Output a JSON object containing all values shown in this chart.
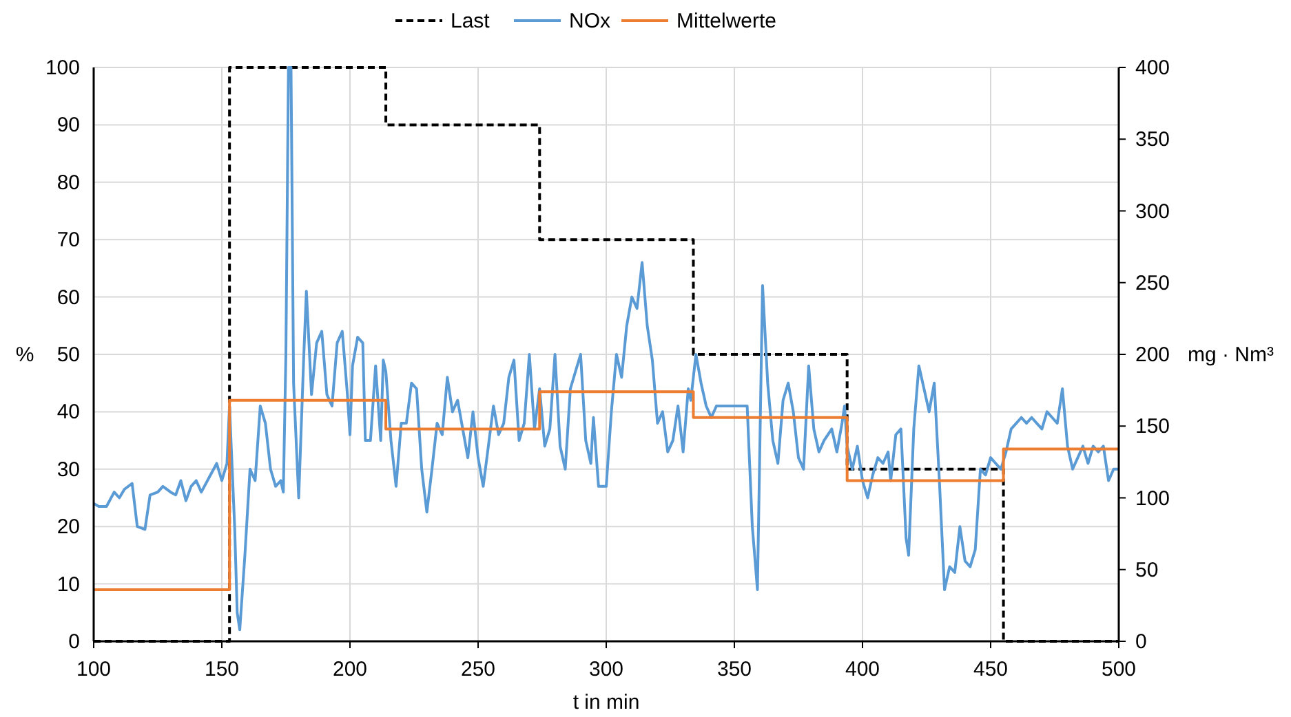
{
  "chart_data": {
    "type": "line",
    "xlabel": "t in min",
    "ylabel": "%",
    "y2label": "mg · Nm³",
    "xlim": [
      100,
      500
    ],
    "xticks": [
      100,
      150,
      200,
      250,
      300,
      350,
      400,
      450,
      500
    ],
    "ylim": [
      0,
      100
    ],
    "yticks": [
      0,
      10,
      20,
      30,
      40,
      50,
      60,
      70,
      80,
      90,
      100
    ],
    "y2lim": [
      0,
      400
    ],
    "y2ticks": [
      0,
      50,
      100,
      150,
      200,
      250,
      300,
      350,
      400
    ],
    "grid": true,
    "legend": "top",
    "series": [
      {
        "name": "Last",
        "type": "step",
        "color": "#000000",
        "line_style": "dashed",
        "x": [
          100,
          153,
          214,
          274,
          334,
          394,
          455,
          500
        ],
        "values": [
          0,
          100,
          90,
          70,
          50,
          30,
          0,
          0
        ]
      },
      {
        "name": "NOx",
        "type": "line",
        "axis": "y2",
        "color": "#5b9bd5",
        "x": [
          100,
          102,
          105,
          108,
          110,
          112,
          115,
          117,
          120,
          122,
          125,
          127,
          130,
          132,
          134,
          136,
          138,
          140,
          142,
          145,
          148,
          150,
          152,
          153,
          155,
          156,
          157,
          159,
          161,
          163,
          165,
          167,
          169,
          171,
          173,
          174,
          175,
          176,
          177,
          178,
          180,
          182,
          183,
          185,
          187,
          189,
          191,
          193,
          195,
          197,
          199,
          200,
          201,
          203,
          205,
          206,
          208,
          210,
          212,
          213,
          214,
          216,
          218,
          220,
          222,
          224,
          226,
          228,
          230,
          232,
          234,
          236,
          238,
          240,
          242,
          244,
          246,
          248,
          250,
          252,
          254,
          256,
          258,
          260,
          262,
          264,
          266,
          268,
          270,
          272,
          274,
          276,
          278,
          280,
          282,
          284,
          286,
          288,
          290,
          292,
          294,
          295,
          297,
          300,
          302,
          304,
          306,
          308,
          310,
          312,
          314,
          316,
          318,
          320,
          322,
          324,
          326,
          328,
          330,
          332,
          333,
          335,
          337,
          339,
          341,
          343,
          350,
          355,
          357,
          359,
          361,
          363,
          365,
          367,
          369,
          371,
          373,
          375,
          377,
          379,
          381,
          383,
          385,
          388,
          390,
          392,
          393,
          394,
          396,
          398,
          400,
          402,
          404,
          406,
          408,
          410,
          411,
          413,
          415,
          417,
          418,
          420,
          422,
          424,
          426,
          428,
          430,
          432,
          434,
          436,
          438,
          440,
          442,
          444,
          446,
          448,
          450,
          452,
          454,
          456,
          458,
          460,
          462,
          464,
          466,
          468,
          470,
          472,
          474,
          476,
          478,
          480,
          482,
          484,
          486,
          488,
          490,
          492,
          494,
          496,
          498,
          500
        ],
        "values": [
          96,
          94,
          94,
          104,
          100,
          106,
          110,
          80,
          78,
          102,
          104,
          108,
          104,
          102,
          112,
          98,
          108,
          112,
          104,
          114,
          124,
          112,
          124,
          164,
          80,
          20,
          8,
          60,
          120,
          112,
          164,
          152,
          120,
          108,
          112,
          104,
          200,
          400,
          400,
          180,
          100,
          200,
          244,
          172,
          208,
          216,
          172,
          164,
          208,
          216,
          172,
          144,
          192,
          212,
          208,
          140,
          140,
          192,
          140,
          196,
          188,
          140,
          108,
          152,
          152,
          180,
          176,
          120,
          90,
          120,
          152,
          144,
          184,
          160,
          168,
          148,
          128,
          160,
          128,
          108,
          136,
          164,
          144,
          152,
          184,
          196,
          140,
          152,
          200,
          148,
          176,
          136,
          148,
          200,
          136,
          120,
          176,
          188,
          200,
          140,
          124,
          156,
          108,
          108,
          160,
          200,
          184,
          220,
          240,
          232,
          264,
          220,
          196,
          152,
          160,
          132,
          140,
          164,
          132,
          176,
          168,
          200,
          180,
          164,
          156,
          164,
          164,
          164,
          80,
          36,
          248,
          180,
          140,
          124,
          168,
          180,
          160,
          128,
          120,
          192,
          148,
          132,
          140,
          148,
          132,
          152,
          164,
          136,
          120,
          136,
          112,
          100,
          116,
          128,
          124,
          132,
          112,
          144,
          148,
          72,
          60,
          148,
          192,
          176,
          160,
          180,
          112,
          36,
          52,
          48,
          80,
          56,
          52,
          64,
          120,
          116,
          128,
          124,
          120,
          132,
          148,
          152,
          156,
          152,
          156,
          152,
          148,
          160,
          156,
          152,
          176,
          136,
          120,
          128,
          136,
          124,
          136,
          132,
          136,
          112,
          120,
          120
        ]
      },
      {
        "name": "Mittelwerte",
        "type": "step",
        "axis": "y2",
        "color": "#ed7d31",
        "line_style": "solid",
        "x": [
          100,
          153,
          214,
          274,
          334,
          394,
          455,
          500
        ],
        "values": [
          36,
          168,
          148,
          174,
          156,
          112,
          134,
          134
        ]
      }
    ]
  }
}
